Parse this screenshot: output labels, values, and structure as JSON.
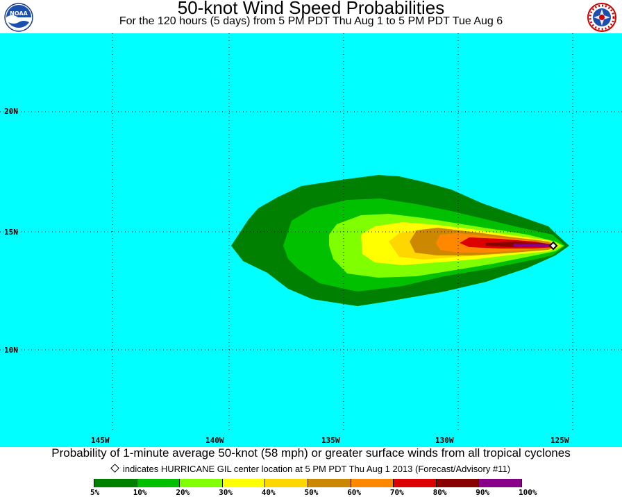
{
  "header": {
    "title": "50-knot Wind Speed Probabilities",
    "subtitle": "For the 120 hours (5 days) from 5 PM PDT Thu Aug 1 to 5 PM PDT Tue Aug 6"
  },
  "logos": {
    "left": {
      "name": "noaa-logo",
      "text": "NOAA"
    },
    "right": {
      "name": "nws-logo",
      "text": "NATIONAL WEATHER SERVICE"
    }
  },
  "map": {
    "ocean_color": "#00ffff",
    "lat_labels": [
      "20N",
      "15N",
      "10N"
    ],
    "lon_labels": [
      "145W",
      "140W",
      "135W",
      "130W",
      "125W"
    ],
    "storm_center": {
      "name": "HURRICANE GIL",
      "lon": -125.4,
      "lat": 14.4
    }
  },
  "caption": {
    "main": "Probability of 1-minute average 50-knot (58 mph) or greater surface winds from all tropical cyclones",
    "note": "indicates HURRICANE GIL center location at 5 PM PDT Thu Aug 1 2013 (Forecast/Advisory #11)"
  },
  "legend": {
    "colors": [
      "#008000",
      "#00c000",
      "#80ff00",
      "#ffff00",
      "#ffd700",
      "#cc8800",
      "#ff8800",
      "#dd0000",
      "#880000",
      "#880088"
    ],
    "labels": [
      "5%",
      "10%",
      "20%",
      "30%",
      "40%",
      "50%",
      "60%",
      "70%",
      "80%",
      "90%",
      "100%"
    ]
  }
}
